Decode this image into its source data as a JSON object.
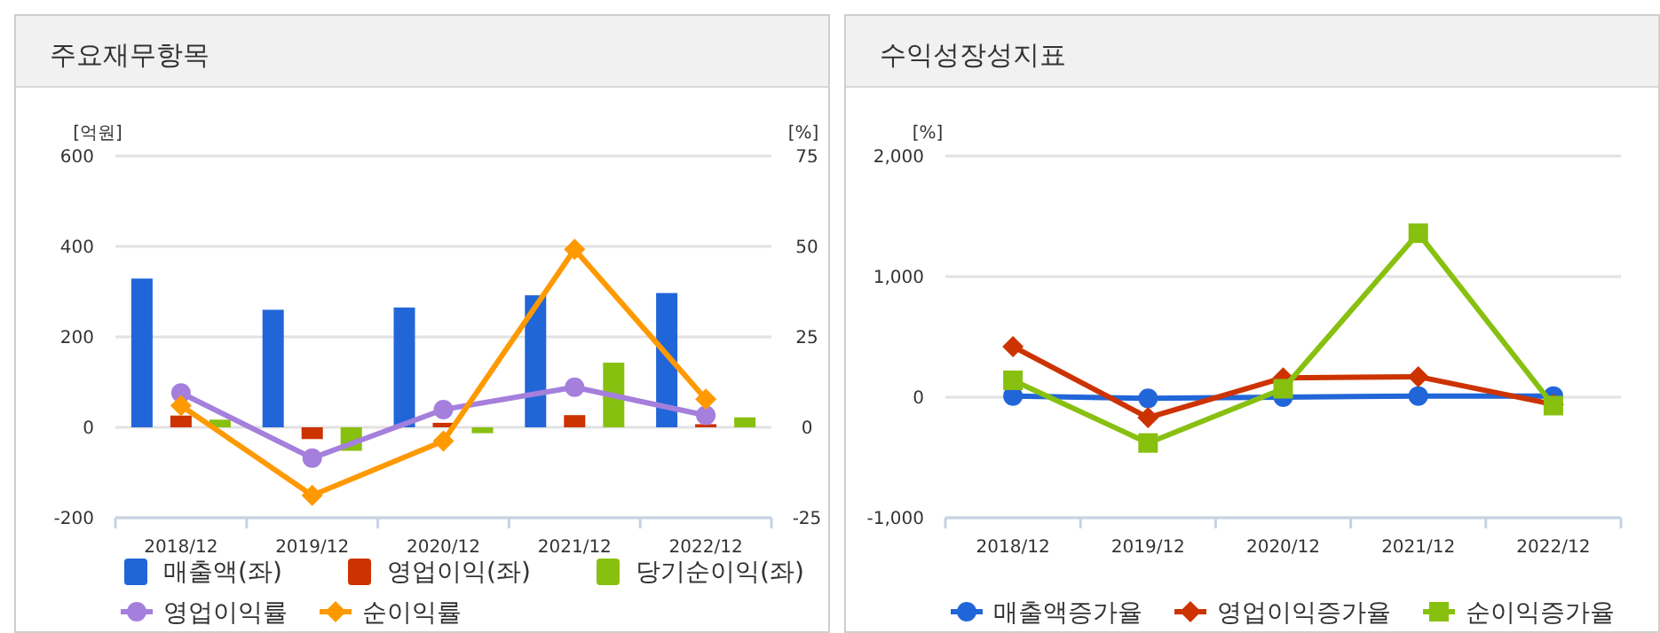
{
  "chart_data": [
    {
      "type": "bar",
      "title": "주요재무항목",
      "ylabel": "[억원]",
      "y2label": "[%]",
      "categories": [
        "2018/12",
        "2019/12",
        "2020/12",
        "2021/12",
        "2022/12"
      ],
      "ylim": [
        -200,
        600
      ],
      "yticks": [
        -200,
        0,
        200,
        400,
        600
      ],
      "y2lim": [
        -25,
        75
      ],
      "y2ticks": [
        -25,
        0,
        25,
        50,
        75
      ],
      "grid": "y",
      "legend": "bottom",
      "series": [
        {
          "name": "매출액(좌)",
          "color": "#2166d8",
          "values": [
            329,
            260,
            265,
            292,
            297
          ]
        },
        {
          "name": "영업이익(좌)",
          "color": "#cc3300",
          "values": [
            26,
            -26,
            10,
            27,
            7
          ]
        },
        {
          "name": "당기순이익(좌)",
          "color": "#88c010",
          "values": [
            17,
            -52,
            -13,
            143,
            22
          ]
        },
        {
          "name": "영업이익률",
          "type": "line",
          "axis": "y2",
          "marker": "circle",
          "color": "#a57fdc",
          "values": [
            9.5,
            -8.5,
            4.9,
            11.1,
            3.3
          ]
        },
        {
          "name": "순이익률",
          "type": "line",
          "axis": "y2",
          "marker": "diamond",
          "color": "#ff9900",
          "values": [
            6.0,
            -18.8,
            -3.8,
            49.2,
            7.8
          ]
        }
      ]
    },
    {
      "type": "line",
      "title": "수익성장성지표",
      "ylabel": "[%]",
      "categories": [
        "2018/12",
        "2019/12",
        "2020/12",
        "2021/12",
        "2022/12"
      ],
      "ylim": [
        -1000,
        2000
      ],
      "yticks": [
        {
          "value": -1000,
          "label": "-1,000"
        },
        {
          "value": 0,
          "label": "0"
        },
        {
          "value": 1000,
          "label": "1,000"
        },
        {
          "value": 2000,
          "label": "2,000"
        }
      ],
      "grid": "y",
      "legend": "bottom",
      "series": [
        {
          "name": "매출액증가율",
          "marker": "circle",
          "color": "#2166d8",
          "values": [
            10,
            -10,
            0,
            10,
            10
          ]
        },
        {
          "name": "영업이익증가율",
          "marker": "diamond",
          "color": "#cc3300",
          "values": [
            420,
            -170,
            160,
            170,
            -60
          ]
        },
        {
          "name": "순이익증가율",
          "marker": "square",
          "color": "#88c010",
          "values": [
            140,
            -380,
            70,
            1360,
            -70
          ]
        }
      ]
    }
  ]
}
